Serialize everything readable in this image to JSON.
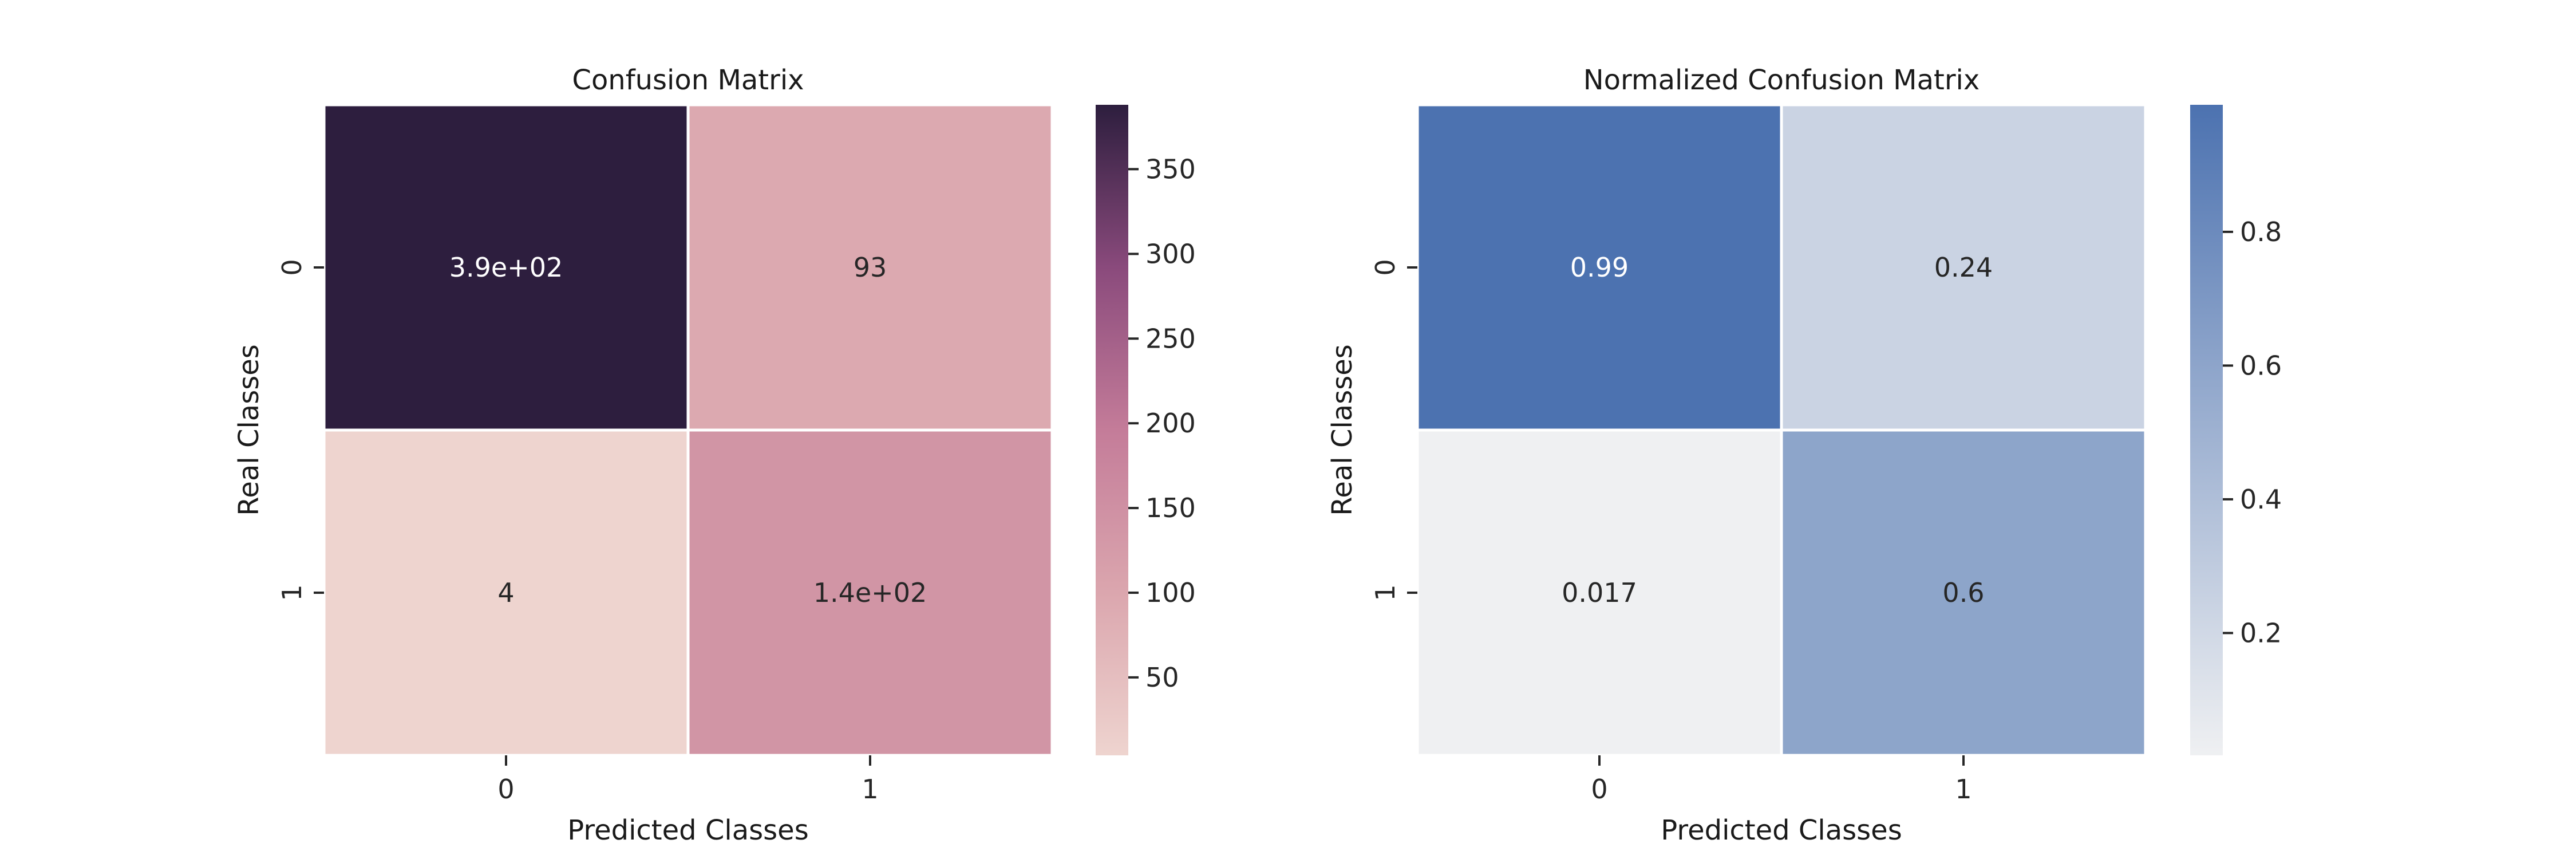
{
  "chart_data": [
    {
      "type": "heatmap",
      "title": "Confusion Matrix",
      "xlabel": "Predicted Classes",
      "ylabel": "Real Classes",
      "x_categories": [
        "0",
        "1"
      ],
      "y_categories": [
        "0",
        "1"
      ],
      "values": [
        [
          388,
          93
        ],
        [
          4,
          140
        ]
      ],
      "annotations": [
        [
          "3.9e+02",
          "93"
        ],
        [
          "4",
          "1.4e+02"
        ]
      ],
      "colorbar": {
        "range": [
          4,
          388
        ],
        "ticks": [
          50,
          100,
          150,
          200,
          250,
          300,
          350
        ],
        "tick_labels": [
          "50",
          "100",
          "150",
          "200",
          "250",
          "300",
          "350"
        ],
        "colors": [
          "#eed4cf",
          "#dba6ae",
          "#c47c99",
          "#8a4a7c",
          "#2d1e3e"
        ]
      }
    },
    {
      "type": "heatmap",
      "title": "Normalized Confusion Matrix",
      "xlabel": "Predicted Classes",
      "ylabel": "Real Classes",
      "x_categories": [
        "0",
        "1"
      ],
      "y_categories": [
        "0",
        "1"
      ],
      "values": [
        [
          0.99,
          0.24
        ],
        [
          0.017,
          0.6
        ]
      ],
      "annotations": [
        [
          "0.99",
          "0.24"
        ],
        [
          "0.017",
          "0.6"
        ]
      ],
      "colorbar": {
        "range": [
          0.017,
          0.99
        ],
        "ticks": [
          0.2,
          0.4,
          0.6,
          0.8
        ],
        "tick_labels": [
          "0.2",
          "0.4",
          "0.6",
          "0.8"
        ],
        "colors": [
          "#eff0f2",
          "#4c72b0"
        ]
      }
    }
  ]
}
